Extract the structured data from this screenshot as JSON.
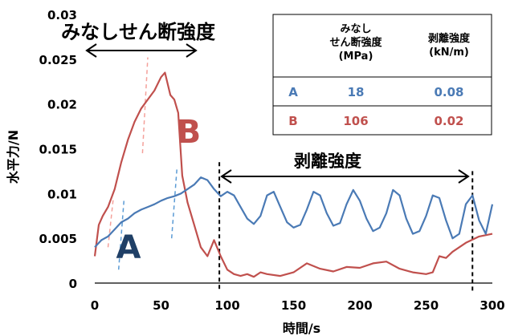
{
  "chart_data": {
    "type": "line",
    "xlabel": "時間/s",
    "ylabel": "水平力/N",
    "xlim": [
      0,
      300
    ],
    "ylim": [
      0,
      0.03
    ],
    "x_ticks": [
      "0",
      "50",
      "100",
      "150",
      "200",
      "250",
      "300"
    ],
    "y_ticks": [
      "0",
      "0.005",
      "0.01",
      "0.015",
      "0.02",
      "0.025",
      "0.03"
    ],
    "grid": false,
    "series": [
      {
        "name": "A",
        "color": "#4a7ab5",
        "x": [
          0,
          5,
          10,
          15,
          20,
          25,
          30,
          35,
          40,
          45,
          50,
          55,
          60,
          65,
          70,
          75,
          80,
          85,
          90,
          95,
          100,
          105,
          110,
          115,
          120,
          125,
          130,
          135,
          140,
          145,
          150,
          155,
          160,
          165,
          170,
          175,
          180,
          185,
          190,
          195,
          200,
          205,
          210,
          215,
          220,
          225,
          230,
          235,
          240,
          245,
          250,
          255,
          260,
          265,
          270,
          275,
          280,
          285,
          290,
          295,
          300
        ],
        "values": [
          0.004,
          0.0048,
          0.0052,
          0.006,
          0.0068,
          0.0072,
          0.0078,
          0.0082,
          0.0085,
          0.0088,
          0.0092,
          0.0095,
          0.0097,
          0.01,
          0.0105,
          0.011,
          0.0118,
          0.0115,
          0.0105,
          0.0097,
          0.0102,
          0.0098,
          0.0085,
          0.0072,
          0.0066,
          0.0075,
          0.0098,
          0.0102,
          0.0085,
          0.0068,
          0.0062,
          0.0065,
          0.0082,
          0.0102,
          0.0098,
          0.0078,
          0.0064,
          0.0067,
          0.0088,
          0.0104,
          0.0092,
          0.0072,
          0.0058,
          0.0062,
          0.0078,
          0.0104,
          0.0098,
          0.0072,
          0.0055,
          0.0058,
          0.0075,
          0.0098,
          0.0095,
          0.007,
          0.005,
          0.0055,
          0.0088,
          0.0098,
          0.007,
          0.0055,
          0.0088
        ]
      },
      {
        "name": "B",
        "color": "#c0504d",
        "x": [
          0,
          3,
          6,
          10,
          15,
          20,
          25,
          30,
          35,
          40,
          45,
          50,
          53,
          57,
          60,
          63,
          66,
          70,
          75,
          80,
          85,
          90,
          95,
          100,
          105,
          110,
          115,
          120,
          125,
          130,
          140,
          150,
          160,
          170,
          180,
          190,
          200,
          210,
          220,
          230,
          240,
          250,
          255,
          260,
          265,
          270,
          280,
          290,
          300
        ],
        "values": [
          0.003,
          0.0065,
          0.0075,
          0.0085,
          0.0105,
          0.0135,
          0.016,
          0.018,
          0.0195,
          0.0205,
          0.0215,
          0.023,
          0.0235,
          0.021,
          0.0205,
          0.019,
          0.012,
          0.009,
          0.0065,
          0.004,
          0.003,
          0.0048,
          0.003,
          0.0015,
          0.001,
          0.0008,
          0.001,
          0.0007,
          0.0012,
          0.001,
          0.0008,
          0.0012,
          0.0022,
          0.0016,
          0.0013,
          0.0018,
          0.0017,
          0.0022,
          0.0024,
          0.0016,
          0.0012,
          0.001,
          0.0012,
          0.003,
          0.0028,
          0.0035,
          0.0045,
          0.0052,
          0.0055
        ]
      }
    ]
  },
  "annotations": {
    "minashi_label": "みなしせん断強度",
    "peel_label": "剥離強度",
    "curve_a_label": "A",
    "curve_b_label": "B"
  },
  "table": {
    "header_col1": "",
    "header_col2_lines": [
      "みなし",
      "せん断強度",
      "(MPa)"
    ],
    "header_col3_lines": [
      "剥離強度",
      "(kN/m)"
    ],
    "rows": [
      {
        "sample": "A",
        "shear": "18",
        "peel": "0.08",
        "color": "#4a7ab5"
      },
      {
        "sample": "B",
        "shear": "106",
        "peel": "0.02",
        "color": "#c0504d"
      }
    ]
  },
  "colors": {
    "series_a": "#4a7ab5",
    "series_b": "#c0504d",
    "guide_a": "#5b9bd5",
    "guide_b": "#f4a09a"
  }
}
